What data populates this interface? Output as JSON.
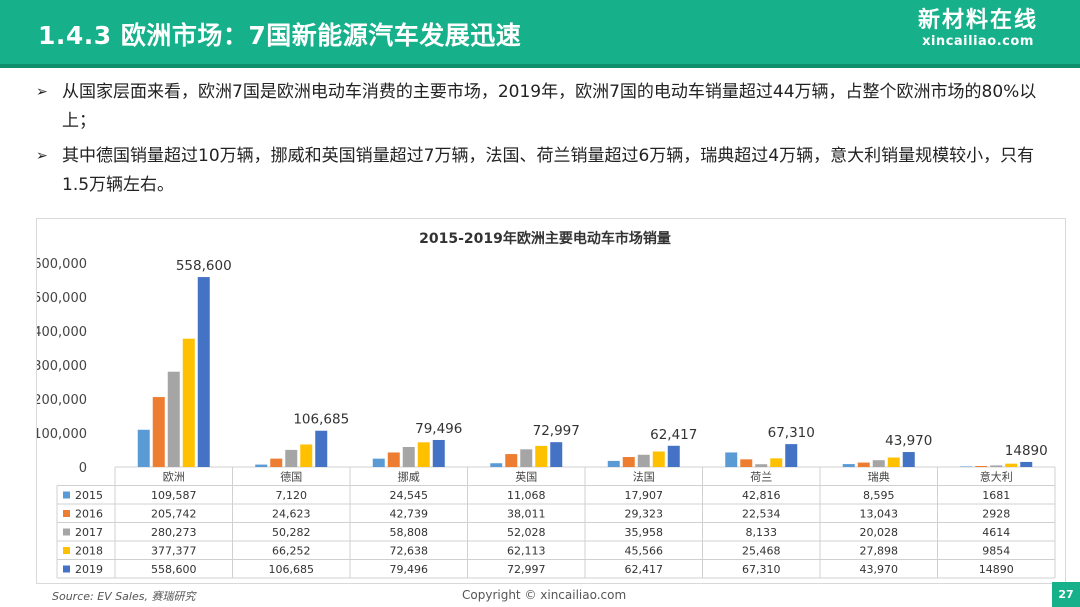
{
  "header": {
    "title": "1.4.3 欧洲市场：7国新能源汽车发展迅速",
    "logo_cn": "新材料在线",
    "logo_en": "xincailiao.com"
  },
  "bullets": [
    "从国家层面来看，欧洲7国是欧洲电动车消费的主要市场，2019年，欧洲7国的电动车销量超过44万辆，占整个欧洲市场的80%以上；",
    "其中德国销量超过10万辆，挪威和英国销量超过7万辆，法国、荷兰销量超过6万辆，瑞典超过4万辆，意大利销量规模较小，只有1.5万辆左右。"
  ],
  "chart_data": {
    "type": "bar",
    "title": "2015-2019年欧洲主要电动车市场销量",
    "categories": [
      "欧洲",
      "德国",
      "挪威",
      "英国",
      "法国",
      "荷兰",
      "瑞典",
      "意大利"
    ],
    "series": [
      {
        "name": "2015",
        "color": "#5b9bd5",
        "values": [
          109587,
          7120,
          24545,
          11068,
          17907,
          42816,
          8595,
          1681
        ],
        "labels": [
          "109,587",
          "7,120",
          "24,545",
          "11,068",
          "17,907",
          "42,816",
          "8,595",
          "1681"
        ]
      },
      {
        "name": "2016",
        "color": "#ed7d31",
        "values": [
          205742,
          24623,
          42739,
          38011,
          29323,
          22534,
          13043,
          2928
        ],
        "labels": [
          "205,742",
          "24,623",
          "42,739",
          "38,011",
          "29,323",
          "22,534",
          "13,043",
          "2928"
        ]
      },
      {
        "name": "2017",
        "color": "#a5a5a5",
        "values": [
          280273,
          50282,
          58808,
          52028,
          35958,
          8133,
          20028,
          4614
        ],
        "labels": [
          "280,273",
          "50,282",
          "58,808",
          "52,028",
          "35,958",
          "8,133",
          "20,028",
          "4614"
        ]
      },
      {
        "name": "2018",
        "color": "#ffc000",
        "values": [
          377377,
          66252,
          72638,
          62113,
          45566,
          25468,
          27898,
          9854
        ],
        "labels": [
          "377,377",
          "66,252",
          "72,638",
          "62,113",
          "45,566",
          "25,468",
          "27,898",
          "9854"
        ]
      },
      {
        "name": "2019",
        "color": "#4472c4",
        "values": [
          558600,
          106685,
          79496,
          72997,
          62417,
          67310,
          43970,
          14890
        ],
        "labels": [
          "558,600",
          "106,685",
          "79,496",
          "72,997",
          "62,417",
          "67,310",
          "43,970",
          "14890"
        ]
      }
    ],
    "data_labels_series": "2019",
    "ylim": [
      0,
      600000
    ],
    "yticks": [
      "0",
      "100,000",
      "200,000",
      "300,000",
      "400,000",
      "500,000",
      "600,000"
    ],
    "legend": "data-table",
    "grid": false
  },
  "footer": {
    "source": "Source:  EV Sales,  赛瑞研究",
    "copyright": "Copyright © xincailiao.com",
    "page": "27"
  },
  "colors": {
    "brand": "#16b08a"
  }
}
